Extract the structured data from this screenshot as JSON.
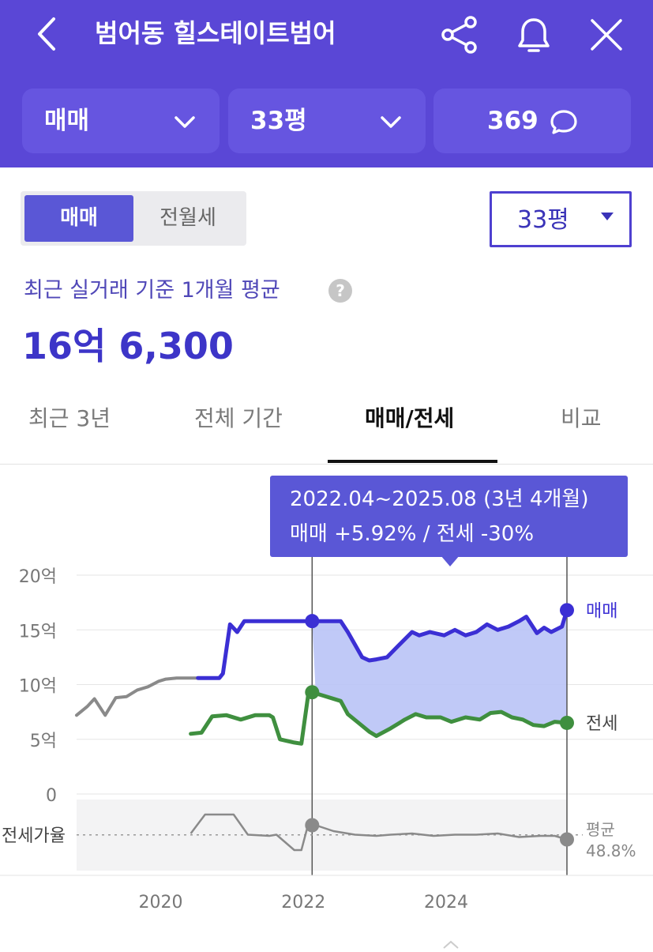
{
  "header": {
    "title": "범어동 힐스테이트범어",
    "icons": [
      "back-icon",
      "share-icon",
      "bell-icon",
      "close-icon"
    ],
    "filters": {
      "trade_type": "매매",
      "size": "33평",
      "comment_count": "369"
    },
    "background": "#5a47d6"
  },
  "controls": {
    "toggle": [
      "매매",
      "전월세"
    ],
    "toggle_selected": "매매",
    "size_select": "33평"
  },
  "summary": {
    "caption": "최근 실거래 기준 1개월 평균",
    "help": "?",
    "price": "16억 6,300"
  },
  "tabs": [
    "최근 3년",
    "전체 기간",
    "매매/전세",
    "비교"
  ],
  "active_tab": "매매/전세",
  "tooltip": {
    "period": "2022.04~2025.08 (3년 4개월)",
    "change": "매매 +5.92%  /  전세 -30%"
  },
  "chart_data": {
    "type": "line",
    "y_ticks": [
      "20억",
      "15억",
      "10억",
      "5억",
      "0"
    ],
    "y_range": [
      0,
      20
    ],
    "x_ticks": [
      "2020",
      "2022",
      "2024"
    ],
    "ratio_label": "전세가율",
    "ratio_average_label": "평균",
    "ratio_average_value": "48.8%",
    "series_labels": {
      "sale": "매매",
      "jeonse": "전세"
    },
    "selected_range": [
      "2022.04",
      "2025.08"
    ],
    "colors": {
      "sale": "#3b2fd4",
      "jeonse": "#3f8f3f",
      "history": "#8a8a8a",
      "area": "#b5bff6"
    },
    "series": [
      {
        "name": "매매",
        "x": [
          2020.5,
          2020.8,
          2020.85,
          2020.95,
          2021.05,
          2021.15,
          2021.3,
          2021.6,
          2021.9,
          2022.1,
          2022.25,
          2022.5,
          2022.6,
          2022.8,
          2022.9,
          2023.0,
          2023.15,
          2023.3,
          2023.5,
          2023.6,
          2023.75,
          2023.95,
          2024.1,
          2024.25,
          2024.4,
          2024.55,
          2024.7,
          2024.85,
          2025.0,
          2025.1,
          2025.25,
          2025.35,
          2025.45,
          2025.6,
          2025.67
        ],
        "y": [
          10.6,
          10.6,
          11.0,
          15.5,
          14.8,
          15.8,
          15.8,
          15.8,
          15.8,
          15.8,
          15.8,
          15.8,
          14.8,
          12.5,
          12.2,
          12.3,
          12.5,
          13.5,
          14.8,
          14.5,
          14.8,
          14.5,
          15.0,
          14.5,
          14.8,
          15.5,
          15.0,
          15.3,
          15.8,
          16.2,
          14.7,
          15.2,
          14.8,
          15.3,
          16.8
        ]
      },
      {
        "name": "전세",
        "x": [
          2020.4,
          2020.55,
          2020.7,
          2020.9,
          2021.1,
          2021.3,
          2021.5,
          2021.55,
          2021.65,
          2021.85,
          2021.95,
          2022.05,
          2022.15,
          2022.25,
          2022.5,
          2022.6,
          2022.75,
          2022.9,
          2023.0,
          2023.2,
          2023.4,
          2023.55,
          2023.7,
          2023.9,
          2024.05,
          2024.25,
          2024.45,
          2024.6,
          2024.75,
          2024.9,
          2025.05,
          2025.2,
          2025.35,
          2025.5,
          2025.67
        ],
        "y": [
          5.5,
          5.6,
          7.1,
          7.2,
          6.8,
          7.2,
          7.2,
          7.0,
          5.0,
          4.7,
          4.6,
          9.3,
          9.2,
          9.0,
          8.5,
          7.3,
          6.5,
          5.7,
          5.3,
          6.0,
          6.8,
          7.3,
          7.0,
          7.0,
          6.6,
          7.0,
          6.8,
          7.4,
          7.5,
          7.0,
          6.8,
          6.3,
          6.2,
          6.6,
          6.5
        ]
      },
      {
        "name": "history",
        "x": [
          2018.8,
          2018.95,
          2019.05,
          2019.2,
          2019.35,
          2019.5,
          2019.65,
          2019.8,
          2019.95,
          2020.05,
          2020.2,
          2020.4,
          2020.6,
          2020.8
        ],
        "y": [
          7.2,
          8.0,
          8.7,
          7.2,
          8.8,
          8.9,
          9.5,
          9.8,
          10.3,
          10.5,
          10.6,
          10.6,
          10.6,
          10.6
        ]
      }
    ],
    "ratio_series": {
      "x": [
        2020.4,
        2020.6,
        2020.85,
        2021.0,
        2021.2,
        2021.5,
        2021.6,
        2021.85,
        2021.95,
        2022.05,
        2022.15,
        2022.4,
        2022.7,
        2023.0,
        2023.2,
        2023.5,
        2023.8,
        2024.1,
        2024.4,
        2024.7,
        2025.0,
        2025.3,
        2025.5,
        2025.67
      ],
      "y": [
        50,
        66,
        66,
        66,
        49,
        48,
        49,
        36,
        36,
        59,
        57,
        52,
        49,
        48,
        49,
        50,
        48,
        49,
        49,
        50,
        47,
        48,
        48,
        45
      ]
    }
  }
}
